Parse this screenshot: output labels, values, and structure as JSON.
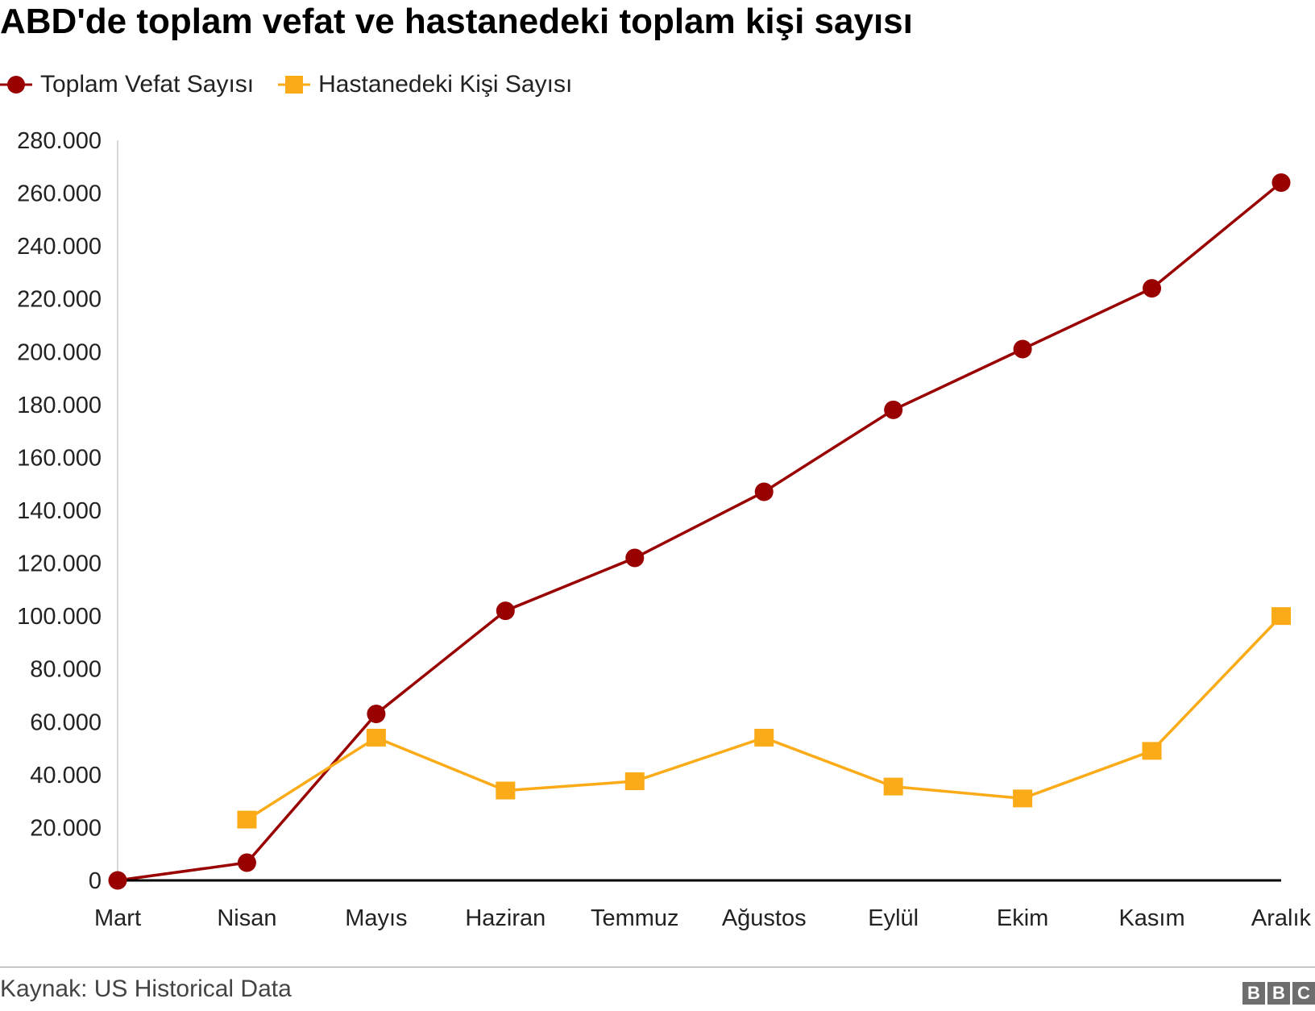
{
  "chart_data": {
    "type": "line",
    "title": "ABD'de toplam vefat ve hastanedeki toplam kişi sayısı",
    "xlabel": "",
    "ylabel": "",
    "categories": [
      "Mart",
      "Nisan",
      "Mayıs",
      "Haziran",
      "Temmuz",
      "Ağustos",
      "Eylül",
      "Ekim",
      "Kasım",
      "Aralık"
    ],
    "ylim": [
      0,
      280000
    ],
    "yticks": [
      "0",
      "20.000",
      "40.000",
      "60.000",
      "80.000",
      "100.000",
      "120.000",
      "140.000",
      "160.000",
      "180.000",
      "200.000",
      "220.000",
      "240.000",
      "260.000",
      "280.000"
    ],
    "grid": false,
    "legend_position": "top-left",
    "series": [
      {
        "name": "Toplam Vefat Sayısı",
        "color": "#990000",
        "marker": "circle",
        "values": [
          0,
          6700,
          63000,
          102000,
          122000,
          147000,
          178000,
          201000,
          224000,
          264000
        ]
      },
      {
        "name": "Hastanedeki Kişi Sayısı",
        "color": "#fbab18",
        "marker": "square",
        "values": [
          null,
          23000,
          54000,
          34000,
          37500,
          54000,
          35500,
          31000,
          49000,
          100000
        ]
      }
    ]
  },
  "footer": {
    "source": "Kaynak: US Historical Data",
    "logo": "BBC"
  }
}
